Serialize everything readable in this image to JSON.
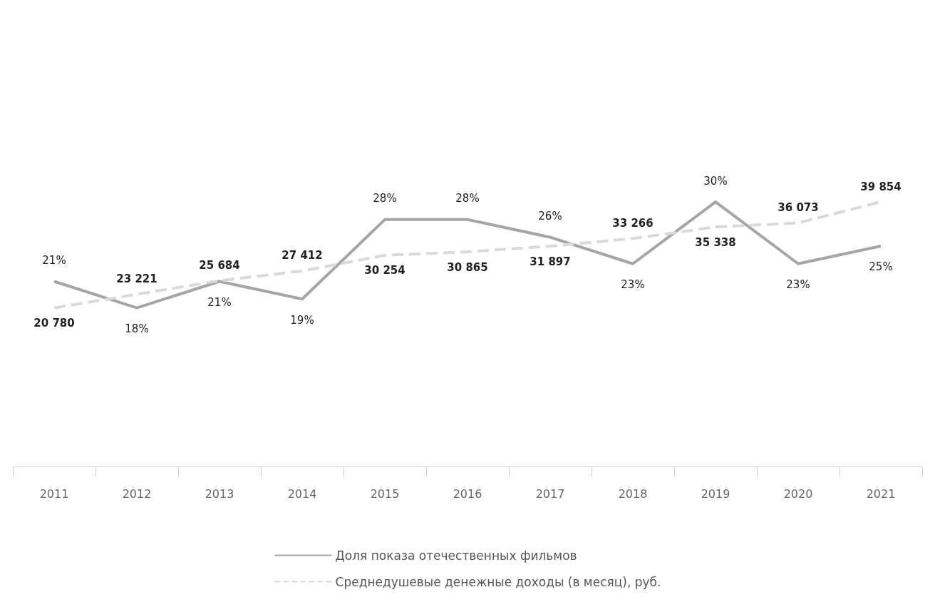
{
  "chart_data": {
    "type": "line",
    "categories": [
      "2011",
      "2012",
      "2013",
      "2014",
      "2015",
      "2016",
      "2017",
      "2018",
      "2019",
      "2020",
      "2021"
    ],
    "series": [
      {
        "name": "Доля показа отечественных фильмов",
        "color": "#a5a5a5",
        "line_style": "solid",
        "values": [
          21,
          18,
          21,
          19,
          28,
          28,
          26,
          23,
          30,
          23,
          25
        ],
        "value_labels": [
          "21%",
          "18%",
          "21%",
          "19%",
          "28%",
          "28%",
          "26%",
          "23%",
          "30%",
          "23%",
          "25%"
        ]
      },
      {
        "name": "Среднедушевые денежные доходы (в месяц), руб.",
        "color": "#d9d9d9",
        "line_style": "dashed",
        "axis": "y2",
        "values": [
          20780,
          23221,
          25684,
          27412,
          30254,
          30865,
          31897,
          33266,
          35338,
          36073,
          39854
        ],
        "value_labels": [
          "20 780",
          "23 221",
          "25 684",
          "27 412",
          "30 254",
          "30 865",
          "31 897",
          "33 266",
          "35 338",
          "36 073",
          "39 854"
        ]
      }
    ],
    "tick_labels": "x",
    "grid": false,
    "legend": "bottom",
    "marker": "none"
  }
}
